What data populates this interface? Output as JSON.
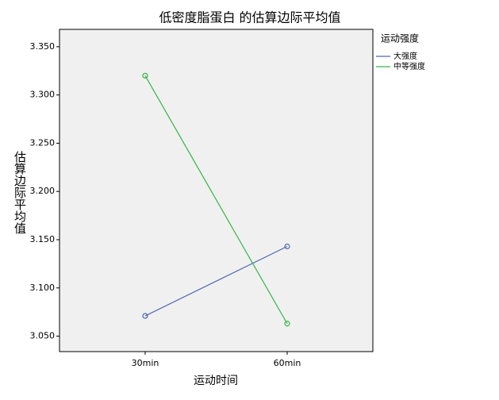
{
  "chart_data": {
    "type": "line",
    "title": "低密度脂蛋白 的估算边际平均值",
    "x_label": "运动时间",
    "y_label": "估算边际平均值",
    "legend_title": "运动强度",
    "legend_position": "right",
    "categories": [
      "30min",
      "60min"
    ],
    "series": [
      {
        "name": "大强度",
        "color": "#4f68b3",
        "values": [
          3.071,
          3.143
        ]
      },
      {
        "name": "中等强度",
        "color": "#35b54a",
        "values": [
          3.32,
          3.063
        ]
      }
    ],
    "ylim": [
      3.034,
      3.368
    ],
    "yticks": [
      {
        "value": 3.05,
        "label": "3.050"
      },
      {
        "value": 3.1,
        "label": "3.100"
      },
      {
        "value": 3.15,
        "label": "3.150"
      },
      {
        "value": 3.2,
        "label": "3.200"
      },
      {
        "value": 3.25,
        "label": "3.250"
      },
      {
        "value": 3.3,
        "label": "3.300"
      },
      {
        "value": 3.35,
        "label": "3.350"
      }
    ]
  }
}
